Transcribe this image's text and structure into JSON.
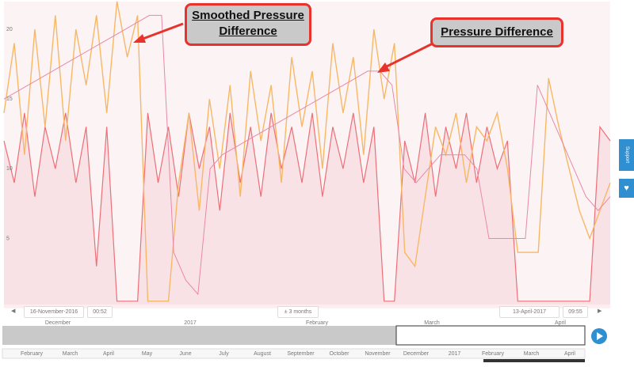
{
  "chart_data": {
    "type": "line",
    "series": [
      {
        "name": "Pressure Difference",
        "color": "#f7b865",
        "width": 1.4,
        "values": [
          14,
          19,
          11,
          20,
          13,
          21,
          12,
          20,
          16,
          21,
          14,
          22,
          18,
          21,
          0.5,
          0.5,
          0.5,
          9,
          14,
          7,
          15,
          10,
          16,
          8,
          17,
          12,
          16,
          9,
          18,
          13,
          17,
          10,
          19,
          14,
          18,
          11,
          20,
          15,
          19,
          4,
          3,
          8,
          13,
          11,
          14,
          9,
          13,
          12,
          14,
          10,
          4,
          4,
          4,
          16.5,
          13,
          10,
          7,
          5,
          7,
          9
        ]
      },
      {
        "name": "Smoothed Pressure Difference",
        "color": "#e889a8",
        "width": 1,
        "values": [
          15,
          15.5,
          16,
          16.5,
          17,
          17.5,
          18,
          18.5,
          19,
          19.5,
          20,
          20.5,
          21,
          21,
          4,
          2,
          1,
          10,
          11,
          11.5,
          12,
          12.5,
          13,
          13.5,
          14,
          14.5,
          15,
          15.5,
          16,
          16.5,
          17,
          17,
          16,
          10,
          9,
          10,
          11,
          11,
          11,
          10,
          5,
          5,
          5,
          5,
          16,
          14,
          12,
          10,
          8,
          7,
          8
        ]
      },
      {
        "color": "#ec6f78",
        "width": 1.2,
        "values": [
          12,
          9,
          14,
          8,
          13,
          10,
          14,
          9,
          13,
          3,
          13,
          0.5,
          0.5,
          0.5,
          14,
          9,
          13,
          8,
          14,
          10,
          13,
          7,
          14,
          9,
          13,
          8,
          14,
          10,
          13,
          9,
          14,
          8,
          13,
          10,
          14,
          9,
          13,
          0.5,
          0.5,
          12,
          9,
          14,
          8,
          13,
          10,
          14,
          9,
          13,
          10,
          12,
          0.5,
          0.5,
          0.5,
          0.5,
          0.5,
          0.5,
          0.5,
          0.5,
          13,
          12
        ]
      }
    ],
    "ylim": [
      0,
      22
    ],
    "yticks": [
      5,
      10,
      15,
      20
    ],
    "grid": false,
    "controls": {
      "start_date": "16-November-2016",
      "start_time": "00:52",
      "range": "± 3 months",
      "end_date": "13-April-2017",
      "end_time": "09:55"
    },
    "navigator_top": [
      "December",
      "2017",
      "February",
      "March",
      "April"
    ],
    "navigator_bottom": [
      "February",
      "March",
      "April",
      "May",
      "June",
      "July",
      "August",
      "September",
      "October",
      "November",
      "December",
      "2017",
      "February",
      "March",
      "April"
    ],
    "side_tab": "Support"
  }
}
